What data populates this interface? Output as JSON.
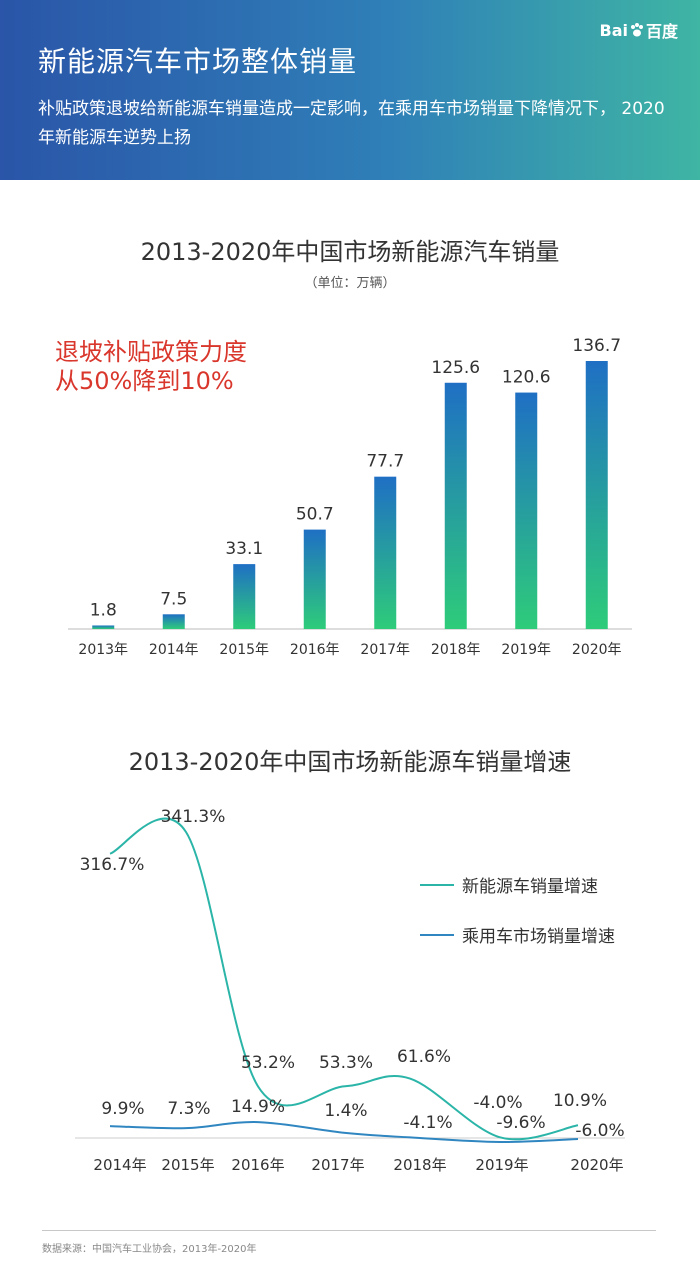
{
  "header": {
    "title": "新能源汽车市场整体销量",
    "description": "补贴政策退坡给新能源车销量造成一定影响，在乘用车市场销量下降情况下， 2020年新能源车逆势上扬",
    "logo_text_1": "Bai",
    "logo_text_2": "百度"
  },
  "colors": {
    "bar_top": "#1f6fc4",
    "bar_bottom": "#2ecc7a",
    "line_nev": "#2bb5a8",
    "line_pv": "#2f86c0",
    "annotation": "#d9362c"
  },
  "annotation": {
    "line1": "退坡补贴政策力度",
    "line2": "从50%降到10%"
  },
  "source": "数据来源：中国汽车工业协会，2013年-2020年",
  "chart_data": [
    {
      "type": "bar",
      "title": "2013-2020年中国市场新能源汽车销量",
      "unit": "（单位：万辆）",
      "categories": [
        "2013年",
        "2014年",
        "2015年",
        "2016年",
        "2017年",
        "2018年",
        "2019年",
        "2020年"
      ],
      "values": [
        1.8,
        7.5,
        33.1,
        50.7,
        77.7,
        125.6,
        120.6,
        136.7
      ],
      "labels": [
        "1.8",
        "7.5",
        "33.1",
        "50.7",
        "77.7",
        "125.6",
        "120.6",
        "136.7"
      ],
      "ylim": [
        0,
        140
      ],
      "grid": false
    },
    {
      "type": "line",
      "title": "2013-2020年中国市场新能源车销量增速",
      "categories": [
        "2014年",
        "2015年",
        "2016年",
        "2017年",
        "2018年",
        "2019年",
        "2020年"
      ],
      "ylim": [
        -20,
        360
      ],
      "legend_position": "right",
      "series": [
        {
          "name": "新能源车销量增速",
          "values": [
            316.7,
            341.3,
            53.2,
            53.3,
            61.6,
            -4.0,
            10.9
          ],
          "labels": [
            "316.7%",
            "341.3%",
            "53.2%",
            "53.3%",
            "61.6%",
            "-4.0%",
            "10.9%"
          ]
        },
        {
          "name": "乘用车市场销量增速",
          "values": [
            9.9,
            7.3,
            14.9,
            1.4,
            -4.1,
            -9.6,
            -6.0
          ],
          "labels": [
            "9.9%",
            "7.3%",
            "14.9%",
            "1.4%",
            "-4.1%",
            "-9.6%",
            "-6.0%"
          ]
        }
      ]
    }
  ]
}
